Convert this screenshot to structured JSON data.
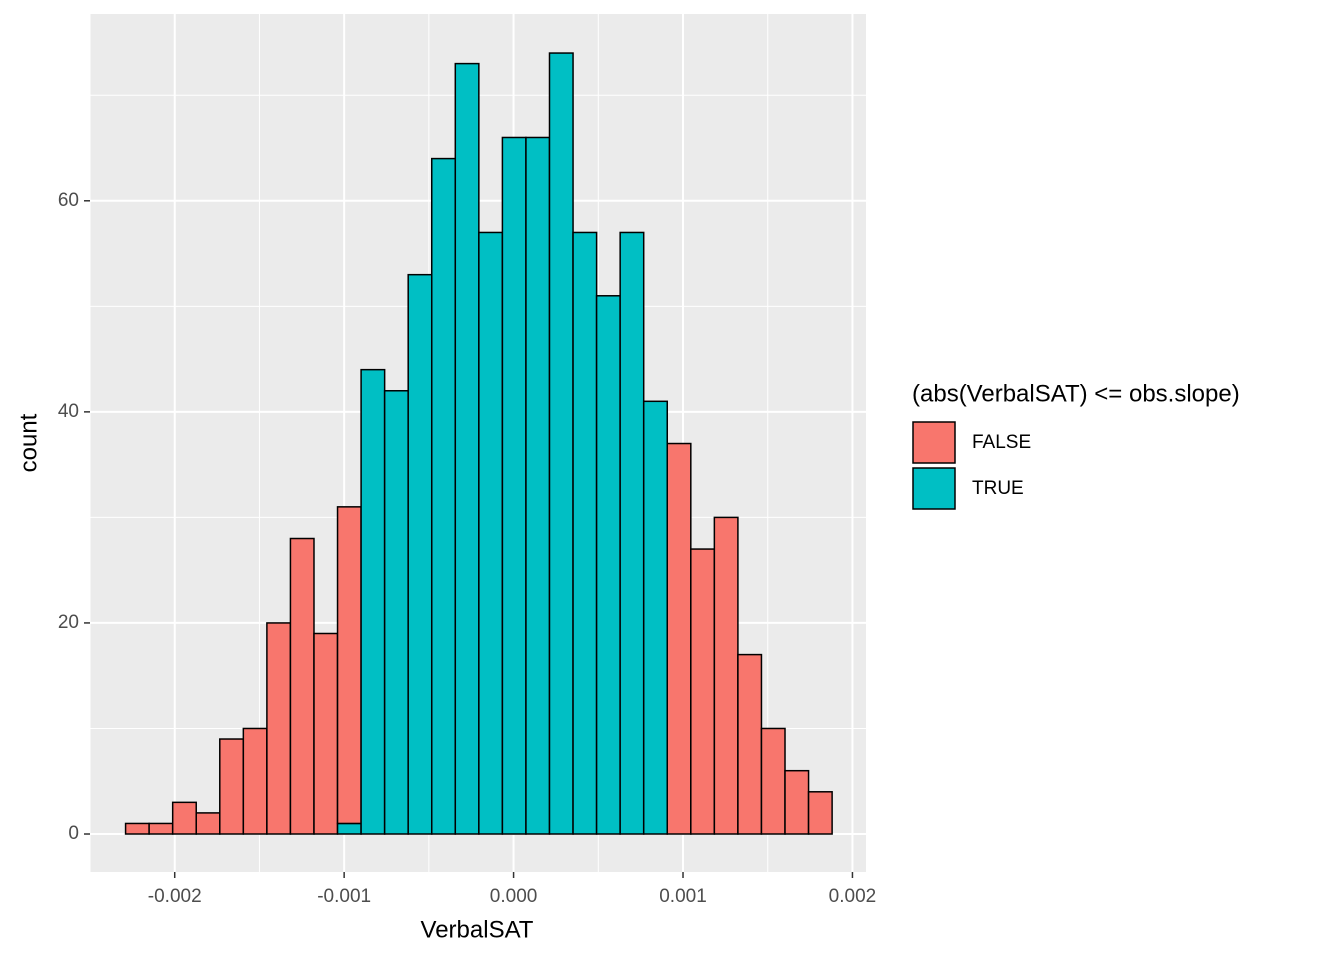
{
  "chart_data": {
    "type": "histogram",
    "x_label": "VerbalSAT",
    "y_label": "count",
    "legend_title": "(abs(VerbalSAT) <= obs.slope)",
    "legend_position": "right",
    "bins": [
      -0.00229,
      -0.002151,
      -0.002012,
      -0.001873,
      -0.001734,
      -0.001595,
      -0.001456,
      -0.001317,
      -0.001178,
      -0.001039,
      -0.0009,
      -0.000761,
      -0.000622,
      -0.000483,
      -0.000344,
      -0.000205,
      -6.6e-05,
      7.3e-05,
      0.000212,
      0.000351,
      0.00049,
      0.000629,
      0.000768,
      0.000907,
      0.001046,
      0.001185,
      0.001324,
      0.001463,
      0.001602,
      0.001741,
      0.00188
    ],
    "series": [
      {
        "name": "FALSE",
        "color": "#f8766d",
        "values": [
          1,
          1,
          3,
          2,
          9,
          10,
          20,
          28,
          19,
          30,
          0,
          0,
          0,
          0,
          0,
          0,
          0,
          0,
          0,
          0,
          0,
          0,
          0,
          37,
          27,
          30,
          17,
          10,
          6,
          4
        ]
      },
      {
        "name": "TRUE",
        "color": "#00bfc4",
        "values": [
          0,
          0,
          0,
          0,
          0,
          0,
          0,
          0,
          0,
          1,
          44,
          42,
          53,
          64,
          73,
          57,
          66,
          66,
          74,
          57,
          51,
          57,
          41,
          0,
          0,
          0,
          0,
          0,
          0,
          0
        ]
      }
    ],
    "stack_order": [
      "TRUE",
      "FALSE"
    ],
    "xlim": [
      -0.0025,
      0.00208
    ],
    "ylim": [
      -3.6,
      77.7
    ],
    "xticks": [
      -0.002,
      -0.001,
      {
        "value": 0,
        "label": "0.000"
      },
      0.001,
      0.002
    ],
    "yticks": [
      0,
      20,
      40,
      60
    ],
    "x_minor_grid": [
      -0.0025,
      -0.0015,
      -0.0005,
      0.0005,
      0.0015
    ],
    "y_minor_grid": [
      10,
      30,
      50,
      70
    ],
    "grid": true
  }
}
